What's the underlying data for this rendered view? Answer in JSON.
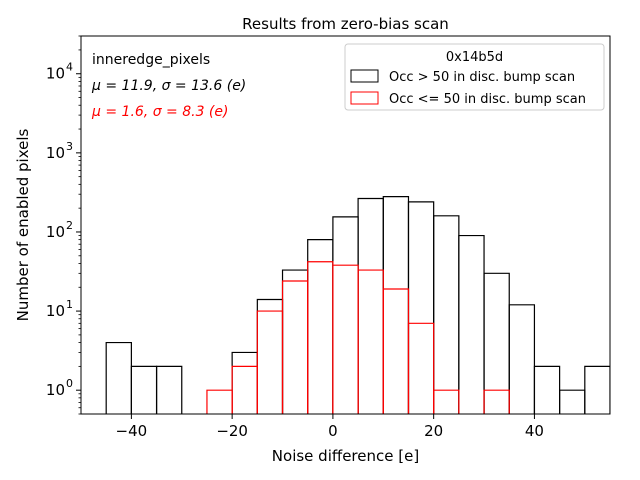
{
  "chart_data": {
    "type": "histogram-step",
    "title": "Results from zero-bias scan",
    "xlabel": "Noise difference [e]",
    "ylabel": "Number of enabled pixels",
    "xlim": [
      -50,
      55
    ],
    "ylim": [
      0.5,
      30000
    ],
    "yscale": "log",
    "bin_width": 5,
    "x_ticks": [
      {
        "value": -40,
        "label": "−40"
      },
      {
        "value": -20,
        "label": "−20"
      },
      {
        "value": 0,
        "label": "0"
      },
      {
        "value": 20,
        "label": "20"
      },
      {
        "value": 40,
        "label": "40"
      }
    ],
    "y_ticks": [
      {
        "value": 1,
        "base": "10",
        "exp": "0"
      },
      {
        "value": 10,
        "base": "10",
        "exp": "1"
      },
      {
        "value": 100,
        "base": "10",
        "exp": "2"
      },
      {
        "value": 1000,
        "base": "10",
        "exp": "3"
      },
      {
        "value": 10000,
        "base": "10",
        "exp": "4"
      }
    ],
    "annotations": {
      "group": "inneredge_pixels",
      "stats_black": "μ = 11.9, σ = 13.6 (e)",
      "stats_red": "μ = 1.6, σ = 8.3 (e)"
    },
    "legend": {
      "title": "0x14b5d",
      "position": "top-right"
    },
    "series": [
      {
        "name": "Occ > 50 in disc. bump scan",
        "color": "#000000",
        "bins": [
          {
            "x0": -45,
            "x1": -40,
            "count": 4
          },
          {
            "x0": -40,
            "x1": -35,
            "count": 2
          },
          {
            "x0": -35,
            "x1": -30,
            "count": 2
          },
          {
            "x0": -30,
            "x1": -25,
            "count": 0
          },
          {
            "x0": -25,
            "x1": -20,
            "count": 0
          },
          {
            "x0": -20,
            "x1": -15,
            "count": 3
          },
          {
            "x0": -15,
            "x1": -10,
            "count": 14
          },
          {
            "x0": -10,
            "x1": -5,
            "count": 33
          },
          {
            "x0": -5,
            "x1": 0,
            "count": 80
          },
          {
            "x0": 0,
            "x1": 5,
            "count": 155
          },
          {
            "x0": 5,
            "x1": 10,
            "count": 265
          },
          {
            "x0": 10,
            "x1": 15,
            "count": 280
          },
          {
            "x0": 15,
            "x1": 20,
            "count": 240
          },
          {
            "x0": 20,
            "x1": 25,
            "count": 160
          },
          {
            "x0": 25,
            "x1": 30,
            "count": 90
          },
          {
            "x0": 30,
            "x1": 35,
            "count": 30
          },
          {
            "x0": 35,
            "x1": 40,
            "count": 12
          },
          {
            "x0": 40,
            "x1": 45,
            "count": 2
          },
          {
            "x0": 45,
            "x1": 50,
            "count": 1
          },
          {
            "x0": 50,
            "x1": 55,
            "count": 2
          }
        ]
      },
      {
        "name": "Occ <= 50 in disc. bump scan",
        "color": "#ff0000",
        "bins": [
          {
            "x0": -25,
            "x1": -20,
            "count": 1
          },
          {
            "x0": -20,
            "x1": -15,
            "count": 2
          },
          {
            "x0": -15,
            "x1": -10,
            "count": 10
          },
          {
            "x0": -10,
            "x1": -5,
            "count": 24
          },
          {
            "x0": -5,
            "x1": 0,
            "count": 42
          },
          {
            "x0": 0,
            "x1": 5,
            "count": 38
          },
          {
            "x0": 5,
            "x1": 10,
            "count": 33
          },
          {
            "x0": 10,
            "x1": 15,
            "count": 19
          },
          {
            "x0": 15,
            "x1": 20,
            "count": 7
          },
          {
            "x0": 20,
            "x1": 25,
            "count": 1
          },
          {
            "x0": 25,
            "x1": 30,
            "count": 0
          },
          {
            "x0": 30,
            "x1": 35,
            "count": 1
          }
        ]
      }
    ]
  }
}
